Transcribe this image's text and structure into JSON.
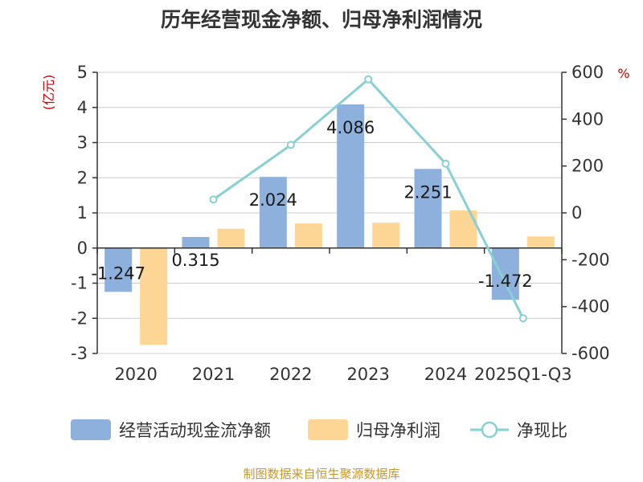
{
  "chart_data": {
    "type": "bar",
    "title": "历年经营现金净额、归母净利润情况",
    "categories": [
      "2020",
      "2021",
      "2022",
      "2023",
      "2024",
      "2025Q1-Q3"
    ],
    "left_axis": {
      "unit": "(亿元)",
      "range": [
        -3,
        5
      ],
      "ticks": [
        5,
        4,
        3,
        2,
        1,
        0,
        -1,
        -2,
        -3
      ]
    },
    "right_axis": {
      "unit": "%",
      "range": [
        -600,
        600
      ],
      "ticks": [
        600,
        400,
        200,
        0,
        -200,
        -400,
        -600
      ]
    },
    "series": [
      {
        "name": "经营活动现金流净额",
        "kind": "bar",
        "axis": "left",
        "color": "#8eb0dc",
        "values": [
          -1.247,
          0.315,
          2.024,
          4.086,
          2.251,
          -1.472
        ],
        "labels": [
          "-1.247",
          "0.315",
          "2.024",
          "4.086",
          "2.251",
          "-1.472"
        ]
      },
      {
        "name": "归母净利润",
        "kind": "bar",
        "axis": "left",
        "color": "#fdd594",
        "values": [
          -2.75,
          0.55,
          0.7,
          0.72,
          1.07,
          0.33
        ]
      },
      {
        "name": "净现比",
        "kind": "line",
        "axis": "right",
        "color": "#86d0d6",
        "values": [
          null,
          57,
          290,
          570,
          210,
          -450
        ]
      }
    ],
    "grid": true,
    "legend_position": "bottom"
  },
  "source_note": "制图数据来自恒生聚源数据库"
}
